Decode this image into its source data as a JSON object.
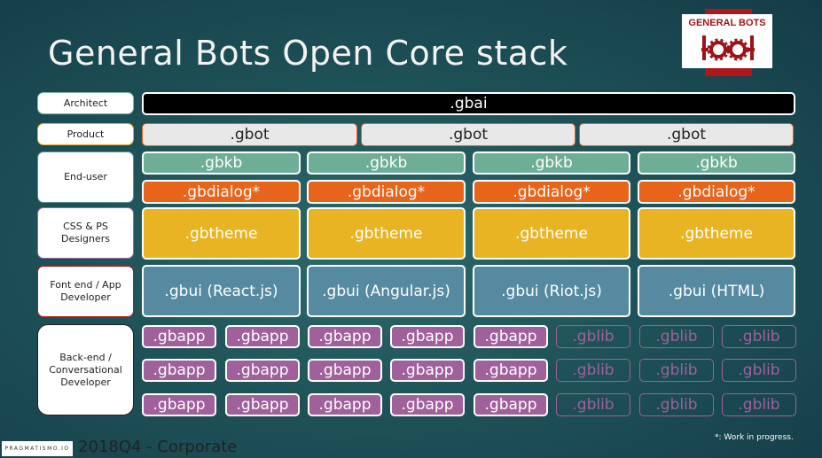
{
  "title": "General Bots Open Core stack",
  "logo": {
    "text": "GENERAL BOTS"
  },
  "roles": [
    {
      "label": "Architect",
      "border": "#7fb8a4"
    },
    {
      "label": "Product",
      "border": "#e8b020"
    },
    {
      "label": "End-user",
      "border": "#5a8fa0"
    },
    {
      "label": "CSS & PS Designers",
      "border": "#a264a4"
    },
    {
      "label": "Font end / App Developer",
      "border": "#b01818"
    },
    {
      "label": "Back-end / Conversational Developer",
      "border": "#222222"
    }
  ],
  "layers": {
    "architect": [
      ".gbai"
    ],
    "product": [
      ".gbot",
      ".gbot",
      ".gbot"
    ],
    "kb": [
      ".gbkb",
      ".gbkb",
      ".gbkb",
      ".gbkb"
    ],
    "dialog": [
      ".gbdialog*",
      ".gbdialog*",
      ".gbdialog*",
      ".gbdialog*"
    ],
    "theme": [
      ".gbtheme",
      ".gbtheme",
      ".gbtheme",
      ".gbtheme"
    ],
    "ui": [
      ".gbui (React.js)",
      ".gbui (Angular.js)",
      ".gbui (Riot.js)",
      ".gbui (HTML)"
    ],
    "backend": [
      [
        ".gbapp",
        ".gbapp",
        ".gbapp",
        ".gbapp",
        ".gbapp",
        ".gblib",
        ".gblib",
        ".gblib"
      ],
      [
        ".gbapp",
        ".gbapp",
        ".gbapp",
        ".gbapp",
        ".gbapp",
        ".gblib",
        ".gblib",
        ".gblib"
      ],
      [
        ".gbapp",
        ".gbapp",
        ".gbapp",
        ".gbapp",
        ".gbapp",
        ".gblib",
        ".gblib",
        ".gblib"
      ]
    ]
  },
  "colors": {
    "gbai": "#000000",
    "gbot": "#e8e8e8",
    "gbkb": "#6fae96",
    "gbdialog": "#e8641a",
    "gbtheme": "#e8b424",
    "gbui": "#568aa0",
    "gbapp": "#a0609c",
    "gblib_border": "#a0609c"
  },
  "footer": {
    "company": "PRAGMATISMO.IO",
    "text": "2018Q4 - Corporate",
    "note": "*: Work in progress."
  }
}
